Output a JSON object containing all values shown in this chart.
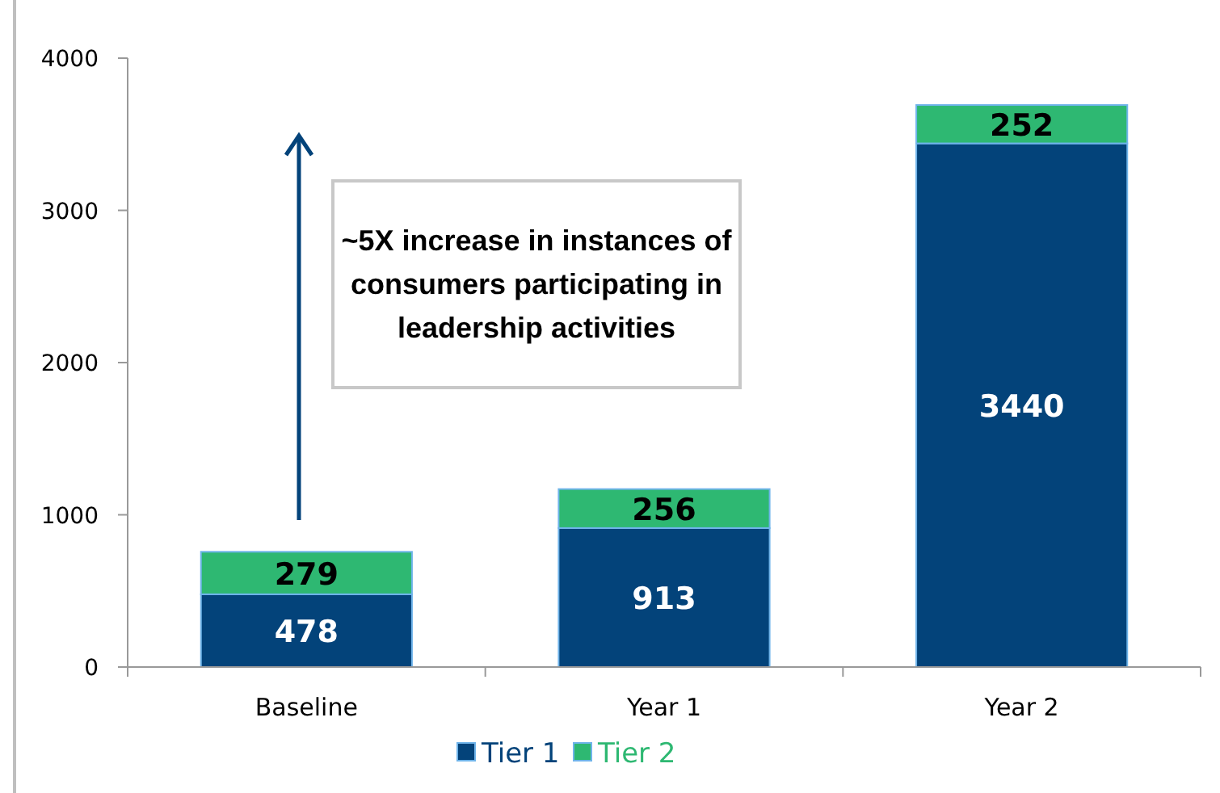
{
  "chart_data": {
    "type": "bar",
    "stacked": true,
    "categories": [
      "Baseline",
      "Year 1",
      "Year 2"
    ],
    "series": [
      {
        "name": "Tier 1",
        "color": "#03437a",
        "values": [
          478,
          913,
          3440
        ]
      },
      {
        "name": "Tier 2",
        "color": "#2eb872",
        "values": [
          279,
          256,
          252
        ]
      }
    ],
    "ylim": [
      0,
      4000
    ],
    "yticks": [
      0,
      1000,
      2000,
      3000,
      4000
    ],
    "data_labels": true,
    "legend": "bottom",
    "grid": false,
    "annotations": [
      "~5X increase in instances of consumers participating in leadership activities"
    ]
  }
}
